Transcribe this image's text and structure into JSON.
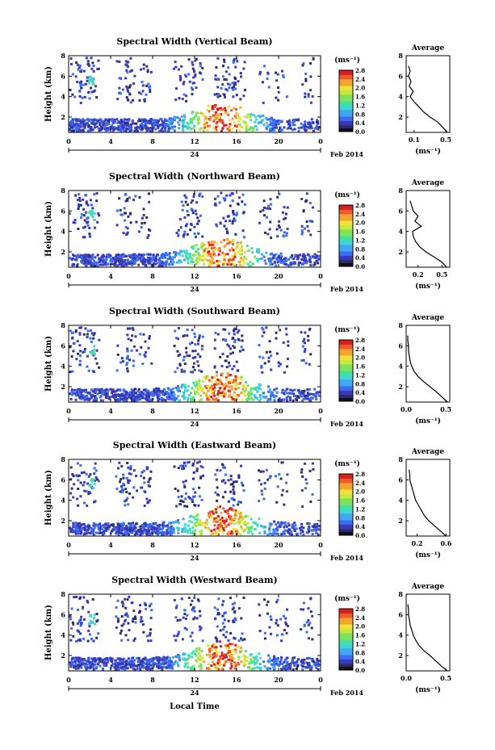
{
  "figure": {
    "date_label": "Feb 2014",
    "day_label": "24",
    "xlabel_bottom": "Local Time",
    "colorbar_unit_label": "(ms⁻¹)",
    "average_title": "Average",
    "average_xlabel": "(ms⁻¹)",
    "colormap": [
      "#2b2b6e",
      "#3a3ab8",
      "#3b6cf2",
      "#3fa7f4",
      "#3fd6d6",
      "#44e0a0",
      "#7fe35a",
      "#c8e83c",
      "#f2e23a",
      "#f5a52e",
      "#f05a2a",
      "#d62020"
    ]
  },
  "chart_data": [
    {
      "type": "heatmap",
      "title": "Spectral Width (Vertical Beam)",
      "ylabel": "Height (km)",
      "xlim": [
        0,
        24
      ],
      "ylim": [
        0.5,
        8
      ],
      "x_ticks": [
        "0",
        "4",
        "8",
        "12",
        "16",
        "20",
        "0"
      ],
      "y_ticks": [
        "2",
        "4",
        "6",
        "8"
      ],
      "colorbar": {
        "range": [
          0,
          2.8
        ],
        "ticks": [
          "0.0",
          "0.4",
          "0.8",
          "1.2",
          "1.6",
          "2.0",
          "2.4",
          "2.8"
        ]
      },
      "average_profile": {
        "x_ticks": [
          "0.1",
          "0.5"
        ],
        "xlim": [
          0,
          0.55
        ],
        "ylim": [
          0.5,
          8
        ],
        "y": [
          0.5,
          1.0,
          1.5,
          2.0,
          2.5,
          3.0,
          3.5,
          4.0,
          4.5,
          5.0,
          5.5,
          6.0,
          6.5,
          7.0
        ],
        "x": [
          0.52,
          0.46,
          0.4,
          0.3,
          0.22,
          0.16,
          0.1,
          0.05,
          0.09,
          0.04,
          0.06,
          0.03,
          0.05,
          0.03
        ]
      }
    },
    {
      "type": "heatmap",
      "title": "Spectral Width (Northward Beam)",
      "ylabel": "Height (km)",
      "xlim": [
        0,
        24
      ],
      "ylim": [
        0.5,
        8
      ],
      "x_ticks": [
        "0",
        "4",
        "8",
        "12",
        "16",
        "20",
        "0"
      ],
      "y_ticks": [
        "2",
        "4",
        "6",
        "8"
      ],
      "colorbar": {
        "range": [
          0,
          2.8
        ],
        "ticks": [
          "0.0",
          "0.4",
          "0.8",
          "1.2",
          "1.6",
          "2.0",
          "2.4",
          "2.8"
        ]
      },
      "average_profile": {
        "x_ticks": [
          "0.2",
          "0.5"
        ],
        "xlim": [
          0.05,
          0.6
        ],
        "ylim": [
          0.5,
          8
        ],
        "y": [
          0.5,
          1.0,
          1.5,
          2.0,
          2.5,
          3.0,
          3.5,
          4.0,
          4.5,
          5.0,
          5.5,
          6.0,
          6.5,
          7.0
        ],
        "x": [
          0.56,
          0.5,
          0.4,
          0.3,
          0.22,
          0.17,
          0.14,
          0.13,
          0.24,
          0.16,
          0.2,
          0.14,
          0.12,
          0.1
        ]
      }
    },
    {
      "type": "heatmap",
      "title": "Spectral Width (Southward Beam)",
      "ylabel": "Height (km)",
      "xlim": [
        0,
        24
      ],
      "ylim": [
        0.5,
        8
      ],
      "x_ticks": [
        "0",
        "4",
        "8",
        "12",
        "16",
        "20",
        "0"
      ],
      "y_ticks": [
        "2",
        "4",
        "6",
        "8"
      ],
      "colorbar": {
        "range": [
          0,
          2.8
        ],
        "ticks": [
          "0.0",
          "0.4",
          "0.8",
          "1.2",
          "1.6",
          "2.0",
          "2.4",
          "2.8"
        ]
      },
      "average_profile": {
        "x_ticks": [
          "0.0",
          "0.5"
        ],
        "xlim": [
          0,
          0.55
        ],
        "ylim": [
          0.5,
          8
        ],
        "y": [
          0.5,
          1.0,
          1.5,
          2.0,
          2.5,
          3.0,
          3.5,
          4.0,
          4.5,
          5.0,
          5.5,
          6.0,
          6.5,
          7.0
        ],
        "x": [
          0.52,
          0.45,
          0.38,
          0.3,
          0.22,
          0.15,
          0.1,
          0.07,
          0.05,
          0.04,
          0.03,
          0.03,
          0.02,
          0.02
        ]
      }
    },
    {
      "type": "heatmap",
      "title": "Spectral Width (Eastward Beam)",
      "ylabel": "Height (km)",
      "xlim": [
        0,
        24
      ],
      "ylim": [
        0.5,
        8
      ],
      "x_ticks": [
        "0",
        "4",
        "8",
        "12",
        "16",
        "20",
        "0"
      ],
      "y_ticks": [
        "2",
        "4",
        "6",
        "8"
      ],
      "colorbar": {
        "range": [
          0,
          2.8
        ],
        "ticks": [
          "0.0",
          "0.4",
          "0.8",
          "1.2",
          "1.6",
          "2.0",
          "2.4",
          "2.8"
        ]
      },
      "average_profile": {
        "x_ticks": [
          "0.2",
          "0.6"
        ],
        "xlim": [
          0.05,
          0.65
        ],
        "ylim": [
          0.5,
          8
        ],
        "y": [
          0.5,
          1.0,
          1.5,
          2.0,
          2.5,
          3.0,
          3.5,
          4.0,
          4.5,
          5.0,
          5.5,
          6.0,
          6.5,
          7.0
        ],
        "x": [
          0.6,
          0.52,
          0.44,
          0.36,
          0.3,
          0.26,
          0.22,
          0.18,
          0.16,
          0.14,
          0.12,
          0.1,
          0.1,
          0.09
        ]
      }
    },
    {
      "type": "heatmap",
      "title": "Spectral Width (Westward Beam)",
      "ylabel": "Height (km)",
      "xlim": [
        0,
        24
      ],
      "ylim": [
        0.5,
        8
      ],
      "x_ticks": [
        "0",
        "4",
        "8",
        "12",
        "16",
        "20",
        "0"
      ],
      "y_ticks": [
        "2",
        "4",
        "6",
        "8"
      ],
      "colorbar": {
        "range": [
          0,
          2.8
        ],
        "ticks": [
          "0.0",
          "0.4",
          "0.8",
          "1.2",
          "1.6",
          "2.0",
          "2.4",
          "2.8"
        ]
      },
      "average_profile": {
        "x_ticks": [
          "0.0",
          "0.5"
        ],
        "xlim": [
          0,
          0.55
        ],
        "ylim": [
          0.5,
          8
        ],
        "y": [
          0.5,
          1.0,
          1.5,
          2.0,
          2.5,
          3.0,
          3.5,
          4.0,
          4.5,
          5.0,
          5.5,
          6.0,
          6.5,
          7.0
        ],
        "x": [
          0.52,
          0.44,
          0.37,
          0.3,
          0.22,
          0.16,
          0.12,
          0.09,
          0.07,
          0.05,
          0.04,
          0.03,
          0.03,
          0.02
        ]
      }
    }
  ]
}
